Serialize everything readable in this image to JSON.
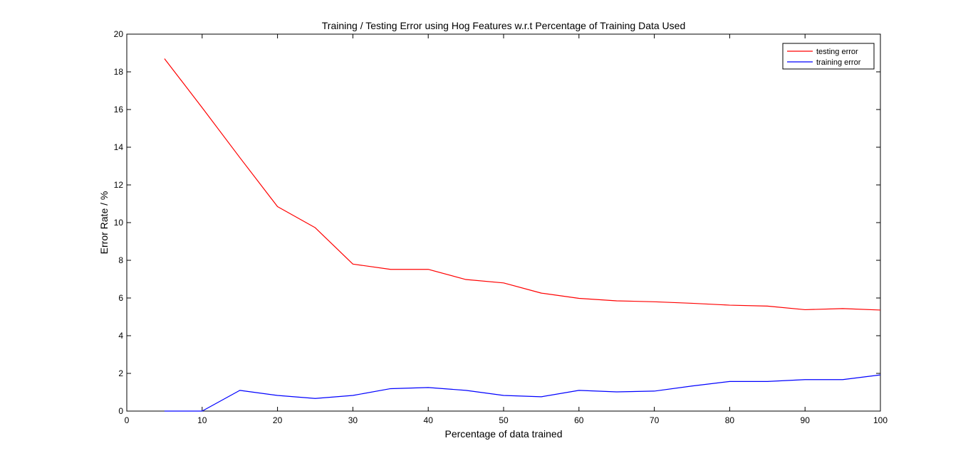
{
  "chart_data": {
    "type": "line",
    "title": "Training / Testing Error using Hog Features w.r.t Percentage of Training Data Used",
    "xlabel": "Percentage of data trained",
    "ylabel": "Error Rate / %",
    "xlim": [
      0,
      100
    ],
    "ylim": [
      0,
      20
    ],
    "xticks": [
      0,
      10,
      20,
      30,
      40,
      50,
      60,
      70,
      80,
      90,
      100
    ],
    "yticks": [
      0,
      2,
      4,
      6,
      8,
      10,
      12,
      14,
      16,
      18,
      20
    ],
    "grid": false,
    "legend_position": "top-right",
    "x": [
      5,
      10,
      15,
      20,
      25,
      30,
      35,
      40,
      45,
      50,
      55,
      60,
      65,
      70,
      75,
      80,
      85,
      90,
      95,
      100
    ],
    "series": [
      {
        "name": "testing error",
        "color": "#ff0000",
        "values": [
          18.7,
          16.1,
          13.45,
          10.85,
          9.73,
          7.8,
          7.52,
          7.52,
          6.98,
          6.8,
          6.26,
          5.98,
          5.85,
          5.8,
          5.72,
          5.62,
          5.57,
          5.38,
          5.44,
          5.36
        ]
      },
      {
        "name": "training error",
        "color": "#0000ff",
        "values": [
          0.0,
          0.0,
          1.1,
          0.83,
          0.67,
          0.83,
          1.19,
          1.25,
          1.1,
          0.83,
          0.76,
          1.1,
          1.02,
          1.06,
          1.33,
          1.57,
          1.57,
          1.67,
          1.67,
          1.92
        ]
      }
    ]
  }
}
